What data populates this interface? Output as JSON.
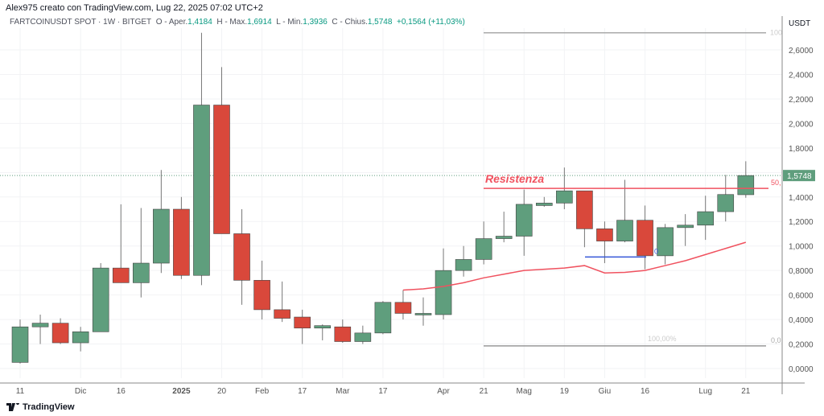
{
  "header": {
    "caption": "Alex975 creato con TradingView.com, Lug 22, 2025 07:02 UTC+2"
  },
  "legend": {
    "symbol": "FARTCOINUSDT SPOT · 1W · BITGET",
    "o_label": "O - Aper.",
    "o": "1,4184",
    "h_label": "H - Max.",
    "h": "1,6914",
    "l_label": "L - Min.",
    "l": "1,3936",
    "c_label": "C - Chius.",
    "c": "1,5748",
    "change": "+0,1564 (+11,03%)"
  },
  "price_axis": {
    "currency": "USDT",
    "ticks": [
      "2,6000",
      "2,4000",
      "2,2000",
      "2,0000",
      "1,8000",
      "1,4000",
      "1,2000",
      "1,0000",
      "0,8000",
      "0,6000",
      "0,4000",
      "0,2000",
      "0,0000"
    ],
    "tick_values": [
      2.6,
      2.4,
      2.2,
      2.0,
      1.8,
      1.4,
      1.2,
      1.0,
      0.8,
      0.6,
      0.4,
      0.2,
      0.0
    ],
    "last_price": "1,5748",
    "last_value": 1.5748
  },
  "time_axis": {
    "labels": [
      "11",
      "Dic",
      "16",
      "2025",
      "20",
      "Feb",
      "17",
      "Mar",
      "17",
      "Apr",
      "21",
      "Mag",
      "19",
      "Giu",
      "16",
      "Lug",
      "21"
    ],
    "label_index": [
      0,
      3,
      5,
      8,
      10,
      12,
      14,
      16,
      18,
      21,
      23,
      25,
      27,
      29,
      31,
      34,
      36
    ],
    "bold": [
      "2025"
    ]
  },
  "annotations": {
    "resistance_label": "Resistenza",
    "resistance_value": 1.47,
    "fib_top_label": "100",
    "fib_top_value": 2.74,
    "fib_bottom_pct": "100,00%",
    "fib_bottom_right": "0,0",
    "fib_bottom_value": 0.185,
    "fib_mid_label": "50,",
    "blue_label": "0",
    "blue_value": 0.91
  },
  "colors": {
    "up": "#5f9e7d",
    "down": "#d9483b",
    "ma": "#f0525f",
    "blue": "#3556d8"
  },
  "chart_data": {
    "type": "candlestick",
    "interval": "1W",
    "ylim": [
      -0.1,
      2.8
    ],
    "ohlc": [
      [
        0.05,
        0.4,
        0.04,
        0.34
      ],
      [
        0.34,
        0.44,
        0.2,
        0.37
      ],
      [
        0.37,
        0.41,
        0.2,
        0.21
      ],
      [
        0.21,
        0.34,
        0.14,
        0.3
      ],
      [
        0.3,
        0.86,
        0.3,
        0.82
      ],
      [
        0.82,
        1.34,
        0.7,
        0.7
      ],
      [
        0.7,
        1.31,
        0.58,
        0.86
      ],
      [
        0.86,
        1.62,
        0.78,
        1.3
      ],
      [
        1.3,
        1.4,
        0.73,
        0.76
      ],
      [
        0.76,
        2.74,
        0.68,
        2.15
      ],
      [
        2.15,
        2.46,
        1.1,
        1.1
      ],
      [
        1.1,
        1.3,
        0.52,
        0.72
      ],
      [
        0.72,
        0.88,
        0.4,
        0.48
      ],
      [
        0.48,
        0.71,
        0.38,
        0.41
      ],
      [
        0.42,
        0.48,
        0.2,
        0.33
      ],
      [
        0.33,
        0.36,
        0.23,
        0.35
      ],
      [
        0.34,
        0.4,
        0.21,
        0.22
      ],
      [
        0.22,
        0.35,
        0.2,
        0.29
      ],
      [
        0.29,
        0.55,
        0.28,
        0.54
      ],
      [
        0.54,
        0.64,
        0.4,
        0.45
      ],
      [
        0.44,
        0.58,
        0.35,
        0.45
      ],
      [
        0.44,
        0.98,
        0.4,
        0.8
      ],
      [
        0.8,
        1.0,
        0.75,
        0.89
      ],
      [
        0.89,
        1.2,
        0.85,
        1.06
      ],
      [
        1.06,
        1.28,
        1.03,
        1.08
      ],
      [
        1.08,
        1.46,
        0.92,
        1.34
      ],
      [
        1.33,
        1.4,
        1.32,
        1.35
      ],
      [
        1.35,
        1.64,
        1.3,
        1.45
      ],
      [
        1.45,
        1.45,
        0.99,
        1.14
      ],
      [
        1.14,
        1.2,
        0.86,
        1.04
      ],
      [
        1.04,
        1.54,
        1.03,
        1.21
      ],
      [
        1.21,
        1.33,
        0.81,
        0.92
      ],
      [
        0.92,
        1.18,
        0.85,
        1.15
      ],
      [
        1.15,
        1.26,
        1.0,
        1.17
      ],
      [
        1.17,
        1.41,
        1.05,
        1.28
      ],
      [
        1.28,
        1.58,
        1.2,
        1.42
      ],
      [
        1.4184,
        1.6914,
        1.3936,
        1.5748
      ]
    ],
    "ma_start_index": 19,
    "ma": [
      0.64,
      0.65,
      0.67,
      0.7,
      0.74,
      0.77,
      0.8,
      0.81,
      0.82,
      0.84,
      0.78,
      0.785,
      0.8,
      0.84,
      0.88,
      0.93,
      0.98,
      1.03
    ]
  },
  "footer": {
    "brand": "TradingView"
  }
}
